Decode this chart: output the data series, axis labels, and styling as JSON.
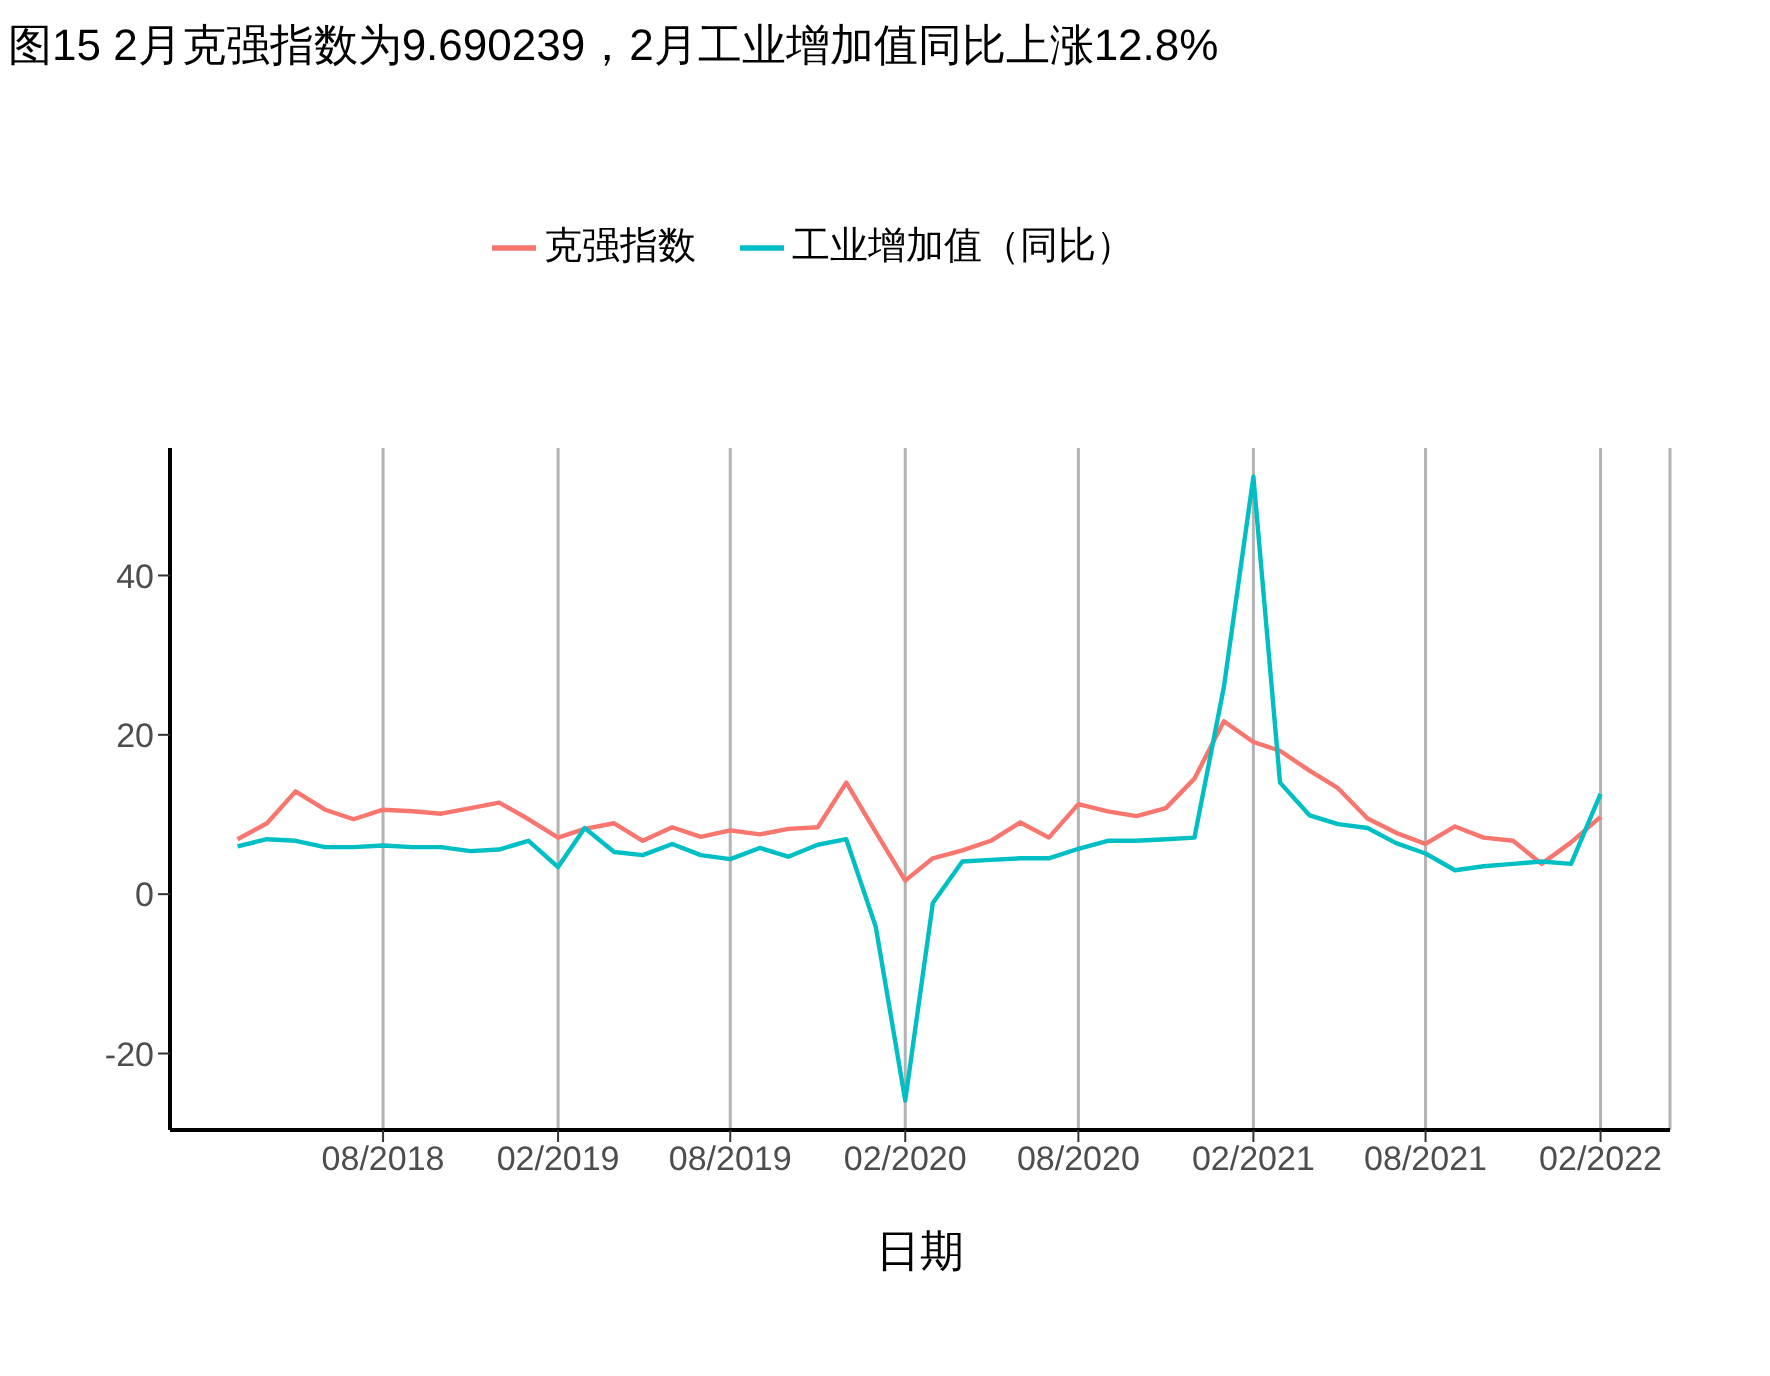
{
  "chart_data": {
    "type": "line",
    "title": "图15 2月克强指数为9.690239，2月工业增加值同比上涨12.8%",
    "xlabel": "日期",
    "x": [
      "2018-03",
      "2018-04",
      "2018-05",
      "2018-06",
      "2018-07",
      "2018-08",
      "2018-09",
      "2018-10",
      "2018-11",
      "2018-12",
      "2019-01",
      "2019-02",
      "2019-03",
      "2019-04",
      "2019-05",
      "2019-06",
      "2019-07",
      "2019-08",
      "2019-09",
      "2019-10",
      "2019-11",
      "2019-12",
      "2020-01",
      "2020-02",
      "2020-03",
      "2020-04",
      "2020-05",
      "2020-06",
      "2020-07",
      "2020-08",
      "2020-09",
      "2020-10",
      "2020-11",
      "2020-12",
      "2021-01",
      "2021-02",
      "2021-03",
      "2021-04",
      "2021-05",
      "2021-06",
      "2021-07",
      "2021-08",
      "2021-09",
      "2021-10",
      "2021-11",
      "2021-12",
      "2022-01",
      "2022-02"
    ],
    "series": [
      {
        "name": "克强指数",
        "color": "#f8766d",
        "values": [
          6.9,
          8.9,
          12.9,
          10.6,
          9.4,
          10.6,
          10.4,
          10.1,
          10.8,
          11.5,
          9.4,
          7.1,
          8.2,
          8.9,
          6.7,
          8.4,
          7.2,
          8.0,
          7.5,
          8.2,
          8.4,
          14.0,
          7.8,
          1.7,
          4.5,
          5.5,
          6.7,
          9.0,
          7.1,
          11.3,
          10.4,
          9.8,
          10.8,
          14.5,
          21.7,
          19.1,
          18.0,
          15.5,
          13.3,
          9.5,
          7.7,
          6.3,
          8.5,
          7.1,
          6.7,
          3.8,
          6.5,
          9.7
        ]
      },
      {
        "name": "工业增加值（同比）",
        "color": "#00bfc4",
        "values": [
          6.0,
          6.9,
          6.7,
          5.9,
          5.9,
          6.1,
          5.9,
          5.9,
          5.4,
          5.6,
          6.7,
          3.4,
          8.3,
          5.3,
          4.9,
          6.3,
          4.9,
          4.4,
          5.8,
          4.7,
          6.2,
          6.9,
          -4.1,
          -25.9,
          -1.1,
          4.1,
          4.3,
          4.5,
          4.5,
          5.7,
          6.7,
          6.7,
          6.9,
          7.1,
          26,
          52.4,
          14.0,
          9.9,
          8.8,
          8.3,
          6.4,
          5.1,
          3.0,
          3.5,
          3.8,
          4.1,
          3.8,
          12.6
        ]
      }
    ],
    "xlim": [
      "2017-12-20",
      "2022-04-15"
    ],
    "xticks": [
      {
        "value": "2018-08",
        "label": "08/2018"
      },
      {
        "value": "2019-02",
        "label": "02/2019"
      },
      {
        "value": "2019-08",
        "label": "08/2019"
      },
      {
        "value": "2020-02",
        "label": "02/2020"
      },
      {
        "value": "2020-08",
        "label": "08/2020"
      },
      {
        "value": "2021-02",
        "label": "02/2021"
      },
      {
        "value": "2021-08",
        "label": "08/2021"
      },
      {
        "value": "2022-02",
        "label": "02/2022"
      }
    ],
    "ylim": [
      -29.6,
      56
    ],
    "yticks": [
      -20,
      0,
      20,
      40
    ],
    "grid": "x",
    "legend": "top",
    "marker": "none",
    "line_style": "solid"
  }
}
